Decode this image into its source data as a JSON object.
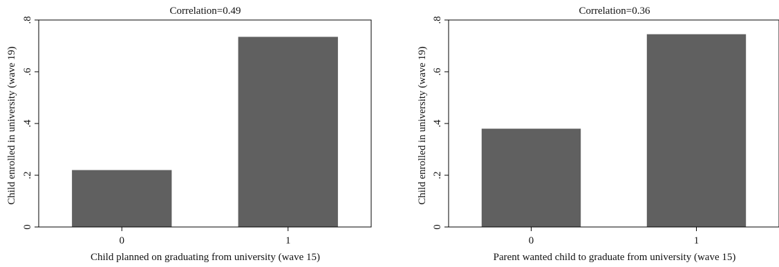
{
  "chart_data": [
    {
      "type": "bar",
      "title": "Correlation=0.49",
      "xlabel": "Child planned on graduating from university (wave 15)",
      "ylabel": "Child enrolled in university (wave 19)",
      "categories": [
        "0",
        "1"
      ],
      "values": [
        0.22,
        0.735
      ],
      "ylim": [
        0,
        0.8
      ],
      "yticks": [
        0,
        0.2,
        0.4,
        0.6,
        0.8
      ],
      "ytick_labels": [
        "0",
        ".2",
        ".4",
        ".6",
        ".8"
      ],
      "bar_color": "#606060",
      "grid": false,
      "legend": "none"
    },
    {
      "type": "bar",
      "title": "Correlation=0.36",
      "xlabel": "Parent wanted child to graduate from university (wave 15)",
      "ylabel": "Child enrolled in university (wave 19)",
      "categories": [
        "0",
        "1"
      ],
      "values": [
        0.38,
        0.745
      ],
      "ylim": [
        0,
        0.8
      ],
      "yticks": [
        0,
        0.2,
        0.4,
        0.6,
        0.8
      ],
      "ytick_labels": [
        "0",
        ".2",
        ".4",
        ".6",
        ".8"
      ],
      "bar_color": "#606060",
      "grid": false,
      "legend": "none"
    }
  ]
}
